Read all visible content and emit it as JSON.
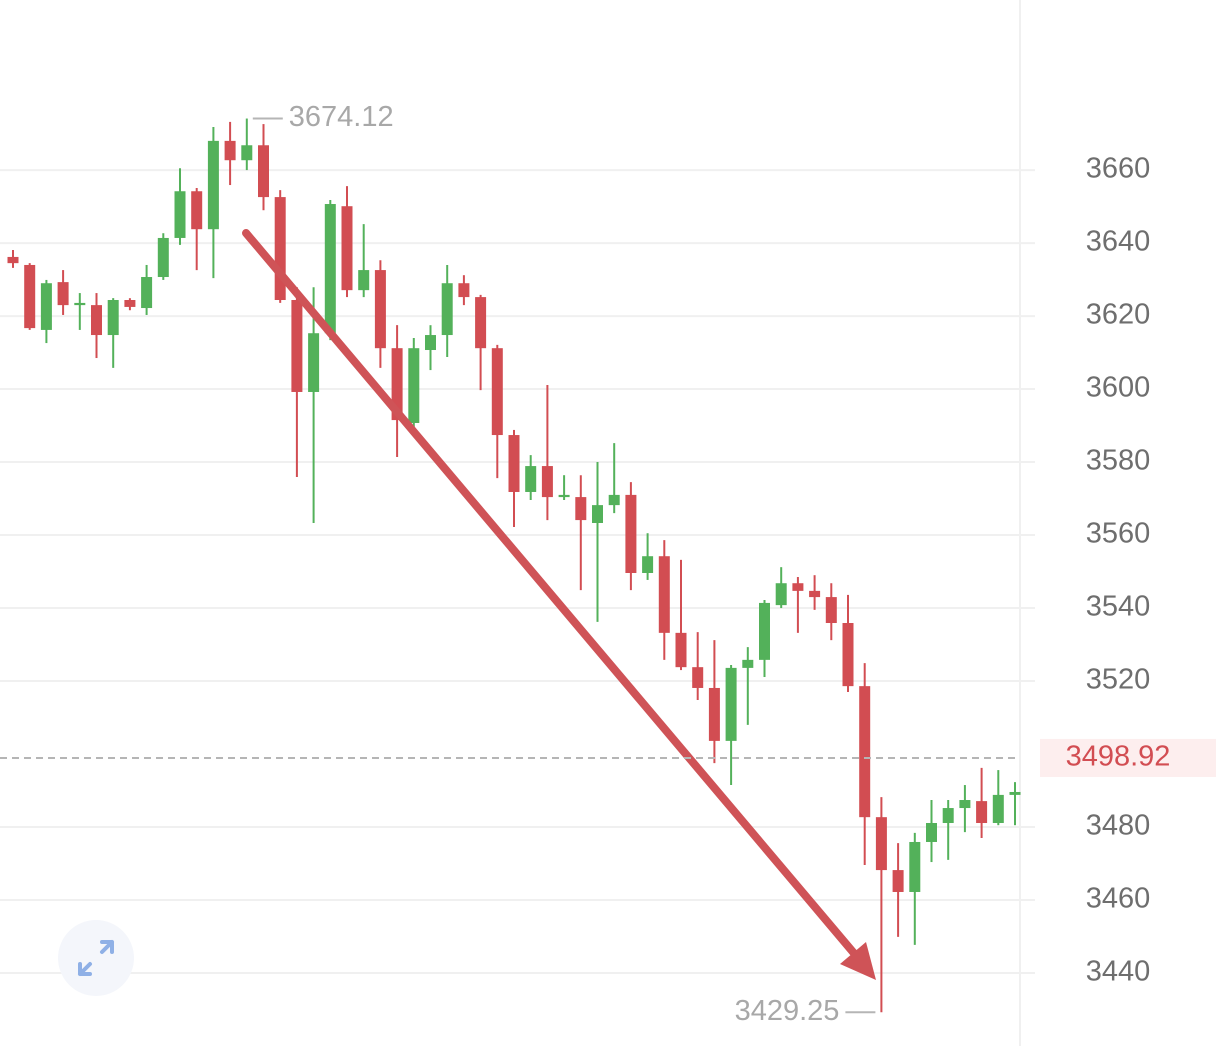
{
  "chart_data": {
    "type": "candlestick",
    "up_color": "#53b15a",
    "down_color": "#d24d52",
    "grid": true,
    "ylim": [
      3420,
      3706.6
    ],
    "yticks": [
      3440,
      3460,
      3480,
      3520,
      3540,
      3560,
      3580,
      3600,
      3620,
      3640,
      3660
    ],
    "open": [
      3636.2,
      3634,
      3616.2,
      3629.3,
      3623,
      3623,
      3614.8,
      3624.4,
      3622.2,
      3630.7,
      3641.4,
      3654.2,
      3643.8,
      3668,
      3662.7,
      3666.8,
      3652.6,
      3624.4,
      3599.2,
      3615.3,
      3650.1,
      3627.1,
      3632.6,
      3611.2,
      3590.7,
      3610.7,
      3614.8,
      3629,
      3625.2,
      3611.2,
      3587.4,
      3571.8,
      3578.9,
      3570.4,
      3570.4,
      3563.3,
      3568.2,
      3571,
      3549.6,
      3554.2,
      3533.2,
      3523.8,
      3518.1,
      3503.6,
      3523.6,
      3525.8,
      3540.8,
      3546.8,
      3544.7,
      3543,
      3535.9,
      3518.6,
      3482.7,
      3468.2,
      3462.2,
      3475.9,
      3481.1,
      3485.2,
      3487.1,
      3481.1,
      3488.8
    ],
    "high": [
      3638.1,
      3634.5,
      3629.9,
      3632.6,
      3626.3,
      3626.3,
      3624.9,
      3624.9,
      3634,
      3642.7,
      3660.5,
      3655.1,
      3671.8,
      3673.2,
      3674.12,
      3672.6,
      3654.5,
      3627.9,
      3627.9,
      3651.8,
      3655.6,
      3645.2,
      3635.3,
      3617.5,
      3614,
      3617.5,
      3634,
      3631.2,
      3625.8,
      3612.1,
      3588.8,
      3581.9,
      3601.1,
      3576.4,
      3576.4,
      3580,
      3585.2,
      3574.5,
      3560.5,
      3558.6,
      3553.2,
      3533.4,
      3531.2,
      3524.4,
      3529.3,
      3542.2,
      3551.2,
      3548.5,
      3549,
      3546.8,
      3543.6,
      3524.9,
      3488.2,
      3475.6,
      3478.4,
      3487.4,
      3487.4,
      3491.5,
      3496.2,
      3495.6,
      3492.3
    ],
    "low": [
      3633.2,
      3616.2,
      3612.6,
      3620.3,
      3616.2,
      3608.5,
      3605.8,
      3621.6,
      3620.3,
      3629.9,
      3639.5,
      3632.6,
      3630.4,
      3655.9,
      3660,
      3649,
      3623.6,
      3575.9,
      3563.3,
      3613.4,
      3625.2,
      3625.2,
      3605.8,
      3581.4,
      3589.3,
      3605.2,
      3608.8,
      3623,
      3599.7,
      3575.6,
      3562.2,
      3569.6,
      3564.1,
      3569.6,
      3544.9,
      3536.2,
      3566,
      3544.9,
      3547.7,
      3525.8,
      3523,
      3514.8,
      3497.5,
      3491.5,
      3508,
      3521.1,
      3540,
      3533.2,
      3539.5,
      3531.2,
      3517,
      3469.6,
      3429.25,
      3449.9,
      3447.7,
      3470.4,
      3471,
      3478.6,
      3477,
      3480.5,
      3480.5
    ],
    "close": [
      3634.5,
      3616.7,
      3629,
      3623,
      3623.6,
      3614.8,
      3624.4,
      3622.5,
      3630.7,
      3641.4,
      3654.2,
      3643.8,
      3668,
      3662.7,
      3666.8,
      3652.6,
      3624.4,
      3599.2,
      3615.3,
      3650.7,
      3627.1,
      3632.6,
      3611.2,
      3591.5,
      3611.2,
      3614.8,
      3629,
      3625.2,
      3611.2,
      3587.4,
      3571.8,
      3578.9,
      3570.4,
      3571,
      3564.1,
      3568.2,
      3571,
      3549.6,
      3554.2,
      3533.2,
      3523.8,
      3518.1,
      3503.6,
      3523.6,
      3525.8,
      3541.4,
      3546.8,
      3544.7,
      3543,
      3535.9,
      3518.6,
      3482.7,
      3468.2,
      3462.2,
      3475.9,
      3481.1,
      3485.2,
      3487.4,
      3481.1,
      3488.8,
      3489.6
    ],
    "high_label": 3674.12,
    "low_label": 3429.25,
    "current_price": 3498.92
  }
}
